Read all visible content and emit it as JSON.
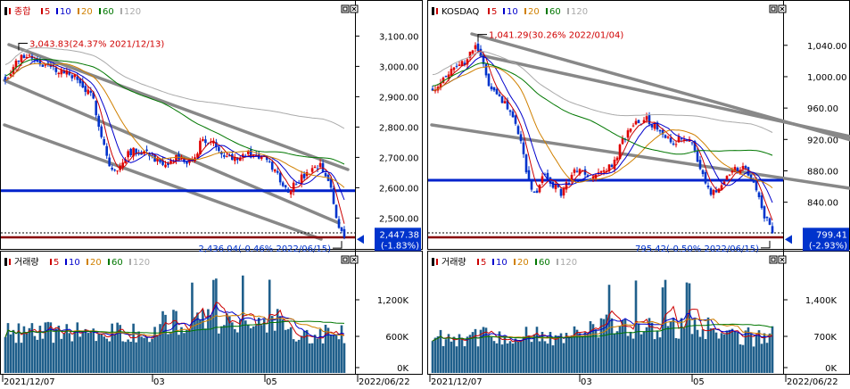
{
  "colors": {
    "up": "#e00000",
    "down": "#0033cc",
    "ma5": "#cc0000",
    "ma10": "#0000cc",
    "ma20": "#d08000",
    "ma60": "#007700",
    "ma120": "#aaaaaa",
    "volume": "#1f5f8b",
    "support_line": "#0022cc",
    "channel": "#888888"
  },
  "panels": [
    {
      "id": "kospi",
      "legend_name": "종합",
      "ma_labels": [
        "5",
        "10",
        "20",
        "60",
        "120"
      ],
      "y_ticks": [
        "3,100.00",
        "3,000.00",
        "2,900.00",
        "2,800.00",
        "2,700.00",
        "2,600.00",
        "2,500.00"
      ],
      "y_tick_values": [
        3100,
        3000,
        2900,
        2800,
        2700,
        2600,
        2500
      ],
      "high_annotation": "3,043.83(24.37% 2021/12/13)",
      "low_annotation": "2,436.04(-0.46% 2022/06/15)",
      "last_price": "2,447.38",
      "last_change": "(-1.83%)",
      "volume_legend": "거래량",
      "vol_ticks": [
        "1,200K",
        "600K",
        "0K"
      ],
      "x_labels": [
        "2021/12/07",
        "03",
        "05",
        "2022/06/22"
      ],
      "chart_data": {
        "type": "candlestick",
        "ylim": [
          2410,
          3160
        ],
        "support_level": 2590,
        "high": {
          "value": 3043.83,
          "date": "2021/12/13"
        },
        "low": {
          "value": 2436.04,
          "date": "2022/06/15"
        },
        "last": 2447.38
      }
    },
    {
      "id": "kosdaq",
      "legend_name": "KOSDAQ",
      "ma_labels": [
        "5",
        "10",
        "20",
        "60",
        "120"
      ],
      "y_ticks": [
        "1,040.00",
        "1,000.00",
        "960.00",
        "920.00",
        "880.00",
        "840.00"
      ],
      "y_tick_values": [
        1040,
        1000,
        960,
        920,
        880,
        840
      ],
      "high_annotation": "1,041.29(30.26% 2022/01/04)",
      "low_annotation": "795.42(-0.50% 2022/06/15)",
      "last_price": "799.41",
      "last_change": "(-2.93%)",
      "volume_legend": "거래량",
      "vol_ticks": [
        "1,400K",
        "700K",
        "0K"
      ],
      "x_labels": [
        "2021/12/07",
        "03",
        "05",
        "2022/06/22"
      ],
      "chart_data": {
        "type": "candlestick",
        "ylim": [
          785,
          1075
        ],
        "support_level": 868,
        "high": {
          "value": 1041.29,
          "date": "2022/01/04"
        },
        "low": {
          "value": 795.42,
          "date": "2022/06/15"
        },
        "last": 799.41
      }
    }
  ]
}
